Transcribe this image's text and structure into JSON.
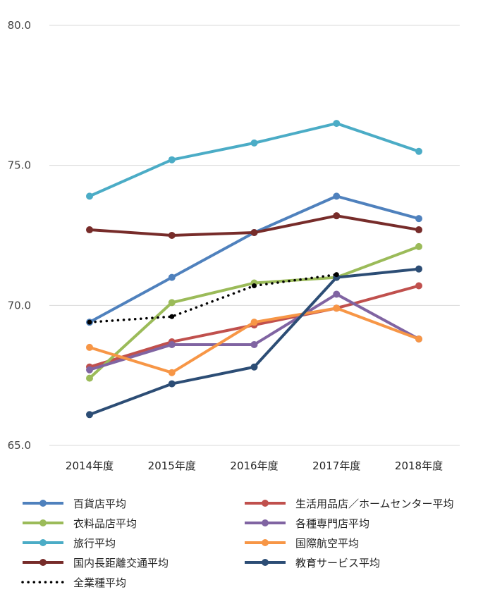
{
  "chart_data": {
    "type": "line",
    "title": "",
    "xlabel": "",
    "ylabel": "",
    "categories": [
      "2014年度",
      "2015年度",
      "2016年度",
      "2017年度",
      "2018年度"
    ],
    "ylim": [
      65,
      80
    ],
    "yticks": [
      "65.0",
      "70.0",
      "75.0",
      "80.0"
    ],
    "grid": true,
    "legend_position": "bottom",
    "series": [
      {
        "name": "百貨店平均",
        "color": "#4f81bd",
        "style": "solid",
        "values": [
          69.4,
          71.0,
          72.6,
          73.9,
          73.1
        ]
      },
      {
        "name": "生活用品店／ホームセンター平均",
        "color": "#c0504d",
        "style": "solid",
        "values": [
          67.8,
          68.7,
          69.3,
          69.9,
          70.7
        ]
      },
      {
        "name": "衣料品店平均",
        "color": "#9bbb59",
        "style": "solid",
        "values": [
          67.4,
          70.1,
          70.8,
          71.0,
          72.1
        ]
      },
      {
        "name": "各種専門店平均",
        "color": "#8064a2",
        "style": "solid",
        "values": [
          67.7,
          68.6,
          68.6,
          70.4,
          68.8
        ]
      },
      {
        "name": "旅行平均",
        "color": "#4bacc6",
        "style": "solid",
        "values": [
          73.9,
          75.2,
          75.8,
          76.5,
          75.5
        ]
      },
      {
        "name": "国際航空平均",
        "color": "#f79646",
        "style": "solid",
        "values": [
          68.5,
          67.6,
          69.4,
          69.9,
          68.8
        ]
      },
      {
        "name": "国内長距離交通平均",
        "color": "#772c2a",
        "style": "solid",
        "values": [
          72.7,
          72.5,
          72.6,
          73.2,
          72.7
        ]
      },
      {
        "name": "教育サービス平均",
        "color": "#2c4d75",
        "style": "solid",
        "values": [
          66.1,
          67.2,
          67.8,
          71.0,
          71.3
        ]
      },
      {
        "name": "全業種平均",
        "color": "#000000",
        "style": "dotted",
        "values": [
          69.4,
          69.6,
          70.7,
          71.1,
          null
        ]
      }
    ]
  }
}
